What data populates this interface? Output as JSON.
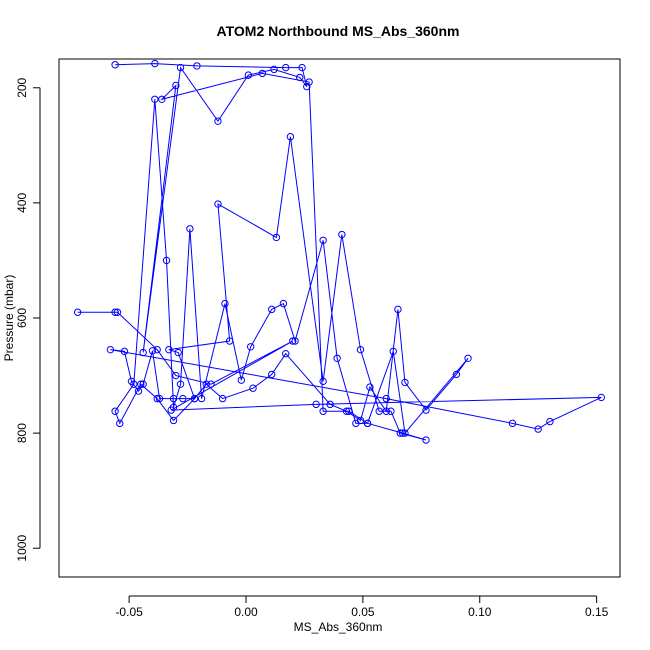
{
  "chart_data": {
    "type": "line",
    "title": "ATOM2 Northbound MS_Abs_360nm",
    "xlabel": "MS_Abs_360nm",
    "ylabel": "Pressure (mbar)",
    "xlim": [
      -0.08,
      0.16
    ],
    "ylim": [
      1050,
      150
    ],
    "y_reversed": true,
    "xticks": [
      -0.05,
      0.0,
      0.05,
      0.1,
      0.15
    ],
    "xtick_labels": [
      "-0.05",
      "0.00",
      "0.05",
      "0.10",
      "0.15"
    ],
    "yticks": [
      200,
      400,
      600,
      800,
      1000
    ],
    "ytick_labels": [
      "200",
      "400",
      "600",
      "800",
      "1000"
    ],
    "grid": false,
    "legend": "none",
    "series_color": "#0000ff",
    "series": [
      {
        "x": [
          -0.072,
          -0.056,
          -0.055,
          -0.038,
          -0.03,
          -0.015,
          0.02,
          -0.032,
          0.03,
          0.152,
          0.13,
          0.125,
          0.114,
          0.06,
          -0.058,
          -0.052,
          -0.049,
          -0.046,
          -0.044,
          -0.04,
          -0.037,
          -0.031,
          -0.027,
          -0.022,
          -0.017,
          -0.01,
          0.003,
          0.011,
          0.017,
          0.036,
          0.043,
          0.049,
          0.053,
          0.06,
          0.065,
          0.068,
          0.077,
          0.09,
          0.095,
          0.068,
          0.063,
          0.052,
          0.047,
          0.039,
          0.033,
          0.021,
          0.016,
          0.011,
          0.002,
          -0.002,
          -0.009,
          -0.019,
          -0.024,
          -0.028,
          -0.031,
          -0.034,
          -0.039,
          -0.048,
          -0.056,
          -0.054,
          -0.045,
          -0.038,
          -0.031,
          -0.022,
          -0.029,
          -0.033,
          -0.007,
          -0.012,
          0.013,
          0.019,
          0.033,
          0.041,
          0.049,
          0.057,
          0.062,
          0.066,
          0.077,
          0.067,
          0.052,
          0.044,
          0.033,
          0.027,
          0.007,
          -0.036,
          -0.03,
          -0.044,
          -0.028,
          -0.012,
          0.001,
          0.012,
          0.023,
          0.026,
          0.024,
          0.017,
          -0.021,
          -0.039,
          -0.056
        ],
        "y": [
          590,
          590,
          590,
          655,
          700,
          715,
          640,
          760,
          750,
          738,
          780,
          793,
          783,
          740,
          655,
          658,
          710,
          727,
          715,
          657,
          740,
          740,
          740,
          740,
          715,
          740,
          722,
          698,
          662,
          750,
          762,
          778,
          720,
          762,
          585,
          712,
          760,
          698,
          670,
          800,
          658,
          783,
          783,
          670,
          465,
          640,
          575,
          585,
          650,
          708,
          575,
          740,
          445,
          715,
          755,
          500,
          220,
          715,
          762,
          783,
          715,
          740,
          778,
          740,
          660,
          655,
          640,
          402,
          460,
          285,
          710,
          455,
          655,
          762,
          762,
          800,
          812,
          800,
          783,
          762,
          762,
          190,
          175,
          220,
          196,
          660,
          165,
          258,
          178,
          168,
          182,
          198,
          165,
          165,
          162,
          158,
          160
        ]
      }
    ]
  }
}
